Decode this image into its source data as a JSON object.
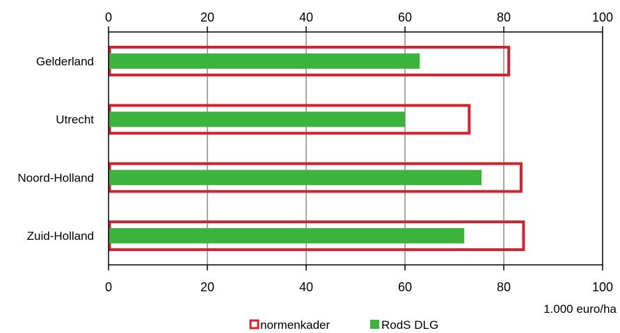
{
  "chart_data": {
    "type": "bar",
    "orientation": "horizontal",
    "categories": [
      "Gelderland",
      "Utrecht",
      "Noord-Holland",
      "Zuid-Holland"
    ],
    "series": [
      {
        "name": "normenkader",
        "values": [
          81,
          73,
          83.5,
          84
        ],
        "color": "#d4202f",
        "style": "outline"
      },
      {
        "name": "RodS DLG",
        "values": [
          63,
          60,
          75.5,
          72
        ],
        "color": "#3cb43c",
        "style": "filled"
      }
    ],
    "xlim": [
      0,
      100
    ],
    "xticks": [
      0,
      20,
      40,
      60,
      80,
      100
    ],
    "axis_top": true,
    "axis_bottom": true,
    "grid": "vertical",
    "unit_label": "1.000 euro/ha",
    "legend_position": "bottom-center"
  }
}
